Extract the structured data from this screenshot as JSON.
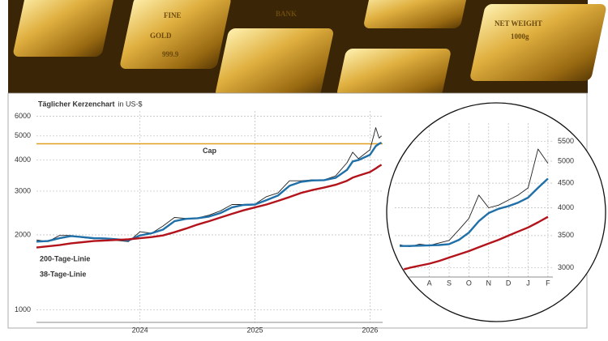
{
  "photo": {
    "stamps": [
      "FINE",
      "GOLD",
      "999.9",
      "BANK",
      "NET WEIGHT",
      "1000g"
    ]
  },
  "chart_data": [
    {
      "type": "line",
      "title": "Täglicher Kerzenchart",
      "subtitle": "in US-$",
      "log_scale": true,
      "grid": true,
      "x": [
        2023.1,
        2023.2,
        2023.3,
        2023.4,
        2023.5,
        2023.6,
        2023.7,
        2023.8,
        2023.9,
        2024.0,
        2024.1,
        2024.2,
        2024.3,
        2024.4,
        2024.5,
        2024.6,
        2024.7,
        2024.8,
        2024.9,
        2025.0,
        2025.1,
        2025.2,
        2025.3,
        2025.4,
        2025.5,
        2025.6,
        2025.7,
        2025.8,
        2025.85,
        2025.9,
        2026.0,
        2026.05,
        2026.08,
        2026.1
      ],
      "xlim": [
        2023.1,
        2026.11
      ],
      "xticks": [
        2024,
        2025,
        2026
      ],
      "ylim": [
        890,
        6300
      ],
      "yticks": [
        1000,
        2000,
        3000,
        4000,
        5000,
        6000
      ],
      "series": [
        {
          "color": "#222222",
          "values": [
            1910,
            1880,
            1990,
            1990,
            1950,
            1930,
            1940,
            1900,
            1880,
            2060,
            2030,
            2170,
            2350,
            2330,
            2340,
            2400,
            2500,
            2650,
            2650,
            2660,
            2850,
            2950,
            3300,
            3300,
            3330,
            3330,
            3450,
            3900,
            4300,
            4050,
            4400,
            5400,
            4900,
            5000
          ]
        },
        {
          "name": "38-Tage-Linie",
          "color": "#1f6fa8",
          "values": [
            1880,
            1890,
            1940,
            1980,
            1960,
            1940,
            1935,
            1920,
            1900,
            1990,
            2030,
            2100,
            2270,
            2320,
            2335,
            2370,
            2450,
            2580,
            2640,
            2650,
            2760,
            2880,
            3150,
            3270,
            3310,
            3320,
            3390,
            3650,
            3950,
            4000,
            4200,
            4550,
            4650,
            4700
          ]
        },
        {
          "name": "200-Tage-Linie",
          "color": "#b3131b",
          "values": [
            1780,
            1800,
            1820,
            1850,
            1870,
            1890,
            1900,
            1910,
            1920,
            1940,
            1960,
            1990,
            2050,
            2120,
            2200,
            2270,
            2350,
            2430,
            2510,
            2580,
            2650,
            2740,
            2840,
            2950,
            3030,
            3100,
            3180,
            3300,
            3400,
            3460,
            3580,
            3700,
            3780,
            3830
          ]
        }
      ],
      "cap": {
        "label": "Cap",
        "value": 4650,
        "color": "#e0a020"
      }
    },
    {
      "type": "line",
      "log_scale": true,
      "grid": true,
      "categories": [
        null,
        null,
        null,
        "A",
        null,
        "S",
        null,
        "O",
        null,
        "N",
        null,
        "D",
        null,
        "J",
        null,
        "F"
      ],
      "ylim": [
        2870,
        6000
      ],
      "yticks": [
        3000,
        3500,
        4000,
        4500,
        5000,
        5500
      ],
      "series": [
        {
          "color": "#222222",
          "values": [
            3350,
            3320,
            3360,
            3340,
            3380,
            3420,
            3600,
            3800,
            4250,
            4000,
            4050,
            4150,
            4250,
            4400,
            5300,
            4950
          ]
        },
        {
          "color": "#1f6fa8",
          "values": [
            3330,
            3330,
            3335,
            3340,
            3345,
            3360,
            3430,
            3550,
            3750,
            3900,
            3980,
            4030,
            4100,
            4200,
            4400,
            4600
          ]
        },
        {
          "color": "#b3131b",
          "values": [
            2960,
            3000,
            3030,
            3060,
            3100,
            3150,
            3200,
            3250,
            3310,
            3370,
            3430,
            3500,
            3570,
            3640,
            3730,
            3830
          ]
        }
      ]
    }
  ]
}
